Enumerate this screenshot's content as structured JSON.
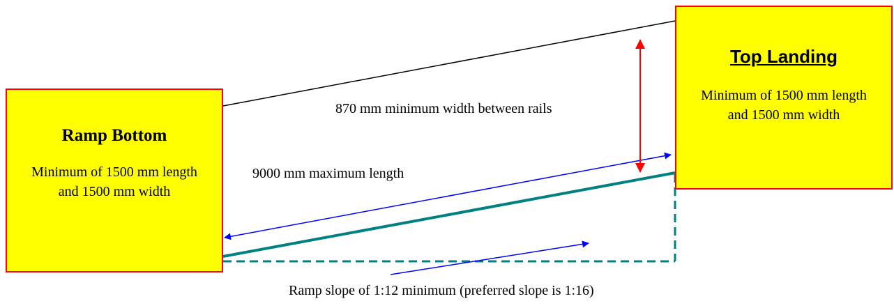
{
  "ramp_bottom": {
    "title": "Ramp Bottom",
    "description": "Minimum of 1500 mm length and 1500 mm width"
  },
  "top_landing": {
    "title": "Top Landing",
    "description": "Minimum of 1500 mm length and 1500 mm width"
  },
  "labels": {
    "width": "870 mm minimum width between rails",
    "length": "9000 mm maximum length",
    "slope": "Ramp slope of 1:12 minimum (preferred slope is 1:16)"
  },
  "colors": {
    "box_fill": "#ffff00",
    "box_border": "#ff0000",
    "ramp_surface": "#008080",
    "length_arrow": "#0000ff",
    "width_arrow": "#ff0000",
    "rail_line": "#000000"
  }
}
